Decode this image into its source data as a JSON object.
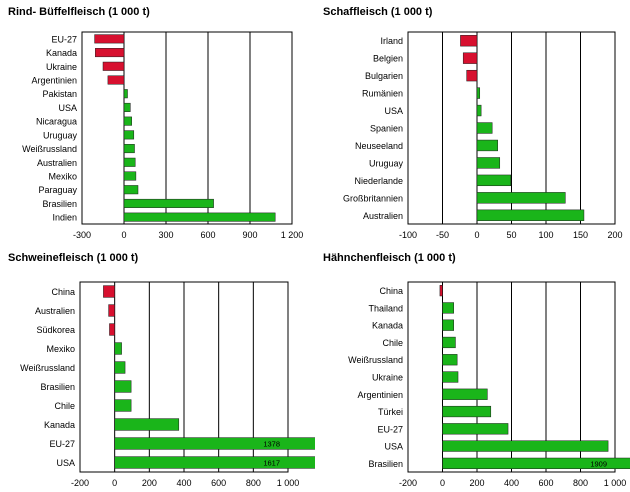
{
  "colors": {
    "negative": "#d7102f",
    "positive": "#1ab51a",
    "grid": "#000000",
    "bar_outline": "#1b1b1b"
  },
  "chart_data": [
    {
      "type": "bar",
      "orientation": "horizontal",
      "title": "Rind- Büffelfleisch (1 000 t)",
      "categories": [
        "EU-27",
        "Kanada",
        "Ukraine",
        "Argentinien",
        "Pakistan",
        "USA",
        "Nicaragua",
        "Uruguay",
        "Weißrussland",
        "Australien",
        "Mexiko",
        "Paraguay",
        "Brasilien",
        "Indien"
      ],
      "values": [
        -210,
        -205,
        -150,
        -115,
        25,
        45,
        55,
        70,
        75,
        80,
        85,
        100,
        640,
        1080
      ],
      "xlim": [
        -300,
        1200
      ],
      "xticks": [
        -300,
        0,
        300,
        600,
        900,
        1200
      ],
      "xtick_labels": [
        "-300",
        "0",
        "300",
        "600",
        "900",
        "1 200"
      ],
      "bar_labels": [
        "",
        "",
        "",
        "",
        "",
        "",
        "",
        "",
        "",
        "",
        "",
        "",
        "",
        ""
      ],
      "grid": true
    },
    {
      "type": "bar",
      "orientation": "horizontal",
      "title": "Schaffleisch (1 000 t)",
      "categories": [
        "Irland",
        "Belgien",
        "Bulgarien",
        "Rumänien",
        "USA",
        "Spanien",
        "Neuseeland",
        "Uruguay",
        "Niederlande",
        "Großbritannien",
        "Australien"
      ],
      "values": [
        -24,
        -20,
        -15,
        4,
        6,
        22,
        30,
        33,
        49,
        128,
        155
      ],
      "xlim": [
        -100,
        200
      ],
      "xticks": [
        -100,
        -50,
        0,
        50,
        100,
        150,
        200
      ],
      "xtick_labels": [
        "-100",
        "-50",
        "0",
        "50",
        "100",
        "150",
        "200"
      ],
      "bar_labels": [
        "",
        "",
        "",
        "",
        "",
        "",
        "",
        "",
        "",
        "",
        ""
      ],
      "grid": true
    },
    {
      "type": "bar",
      "orientation": "horizontal",
      "title": "Schweinefleisch (1 000 t)",
      "categories": [
        "China",
        "Australien",
        "Südkorea",
        "Mexiko",
        "Weißrussland",
        "Brasilien",
        "Chile",
        "Kanada",
        "EU-27",
        "USA"
      ],
      "values": [
        -65,
        -35,
        -30,
        40,
        60,
        95,
        95,
        370,
        1378,
        1617
      ],
      "xlim": [
        -200,
        1000
      ],
      "xticks": [
        -200,
        0,
        200,
        400,
        600,
        800,
        1000
      ],
      "xtick_labels": [
        "-200",
        "0",
        "200",
        "400",
        "600",
        "800",
        "1 000"
      ],
      "bar_labels": [
        "",
        "",
        "",
        "",
        "",
        "",
        "",
        "",
        "1378",
        "1617"
      ],
      "grid": true
    },
    {
      "type": "bar",
      "orientation": "horizontal",
      "title": "Hähnchenfleisch (1 000 t)",
      "categories": [
        "China",
        "Thailand",
        "Kanada",
        "Chile",
        "Weißrussland",
        "Ukraine",
        "Argentinien",
        "Türkei",
        "EU-27",
        "USA",
        "Brasilien"
      ],
      "values": [
        -15,
        65,
        65,
        75,
        85,
        90,
        260,
        280,
        380,
        960,
        1909
      ],
      "xlim": [
        -200,
        1000
      ],
      "xticks": [
        -200,
        0,
        200,
        400,
        600,
        800,
        1000
      ],
      "xtick_labels": [
        "-200",
        "0",
        "200",
        "400",
        "600",
        "800",
        "1 000"
      ],
      "bar_labels": [
        "",
        "",
        "",
        "",
        "",
        "",
        "",
        "",
        "",
        "",
        "1909"
      ],
      "grid": true
    }
  ]
}
